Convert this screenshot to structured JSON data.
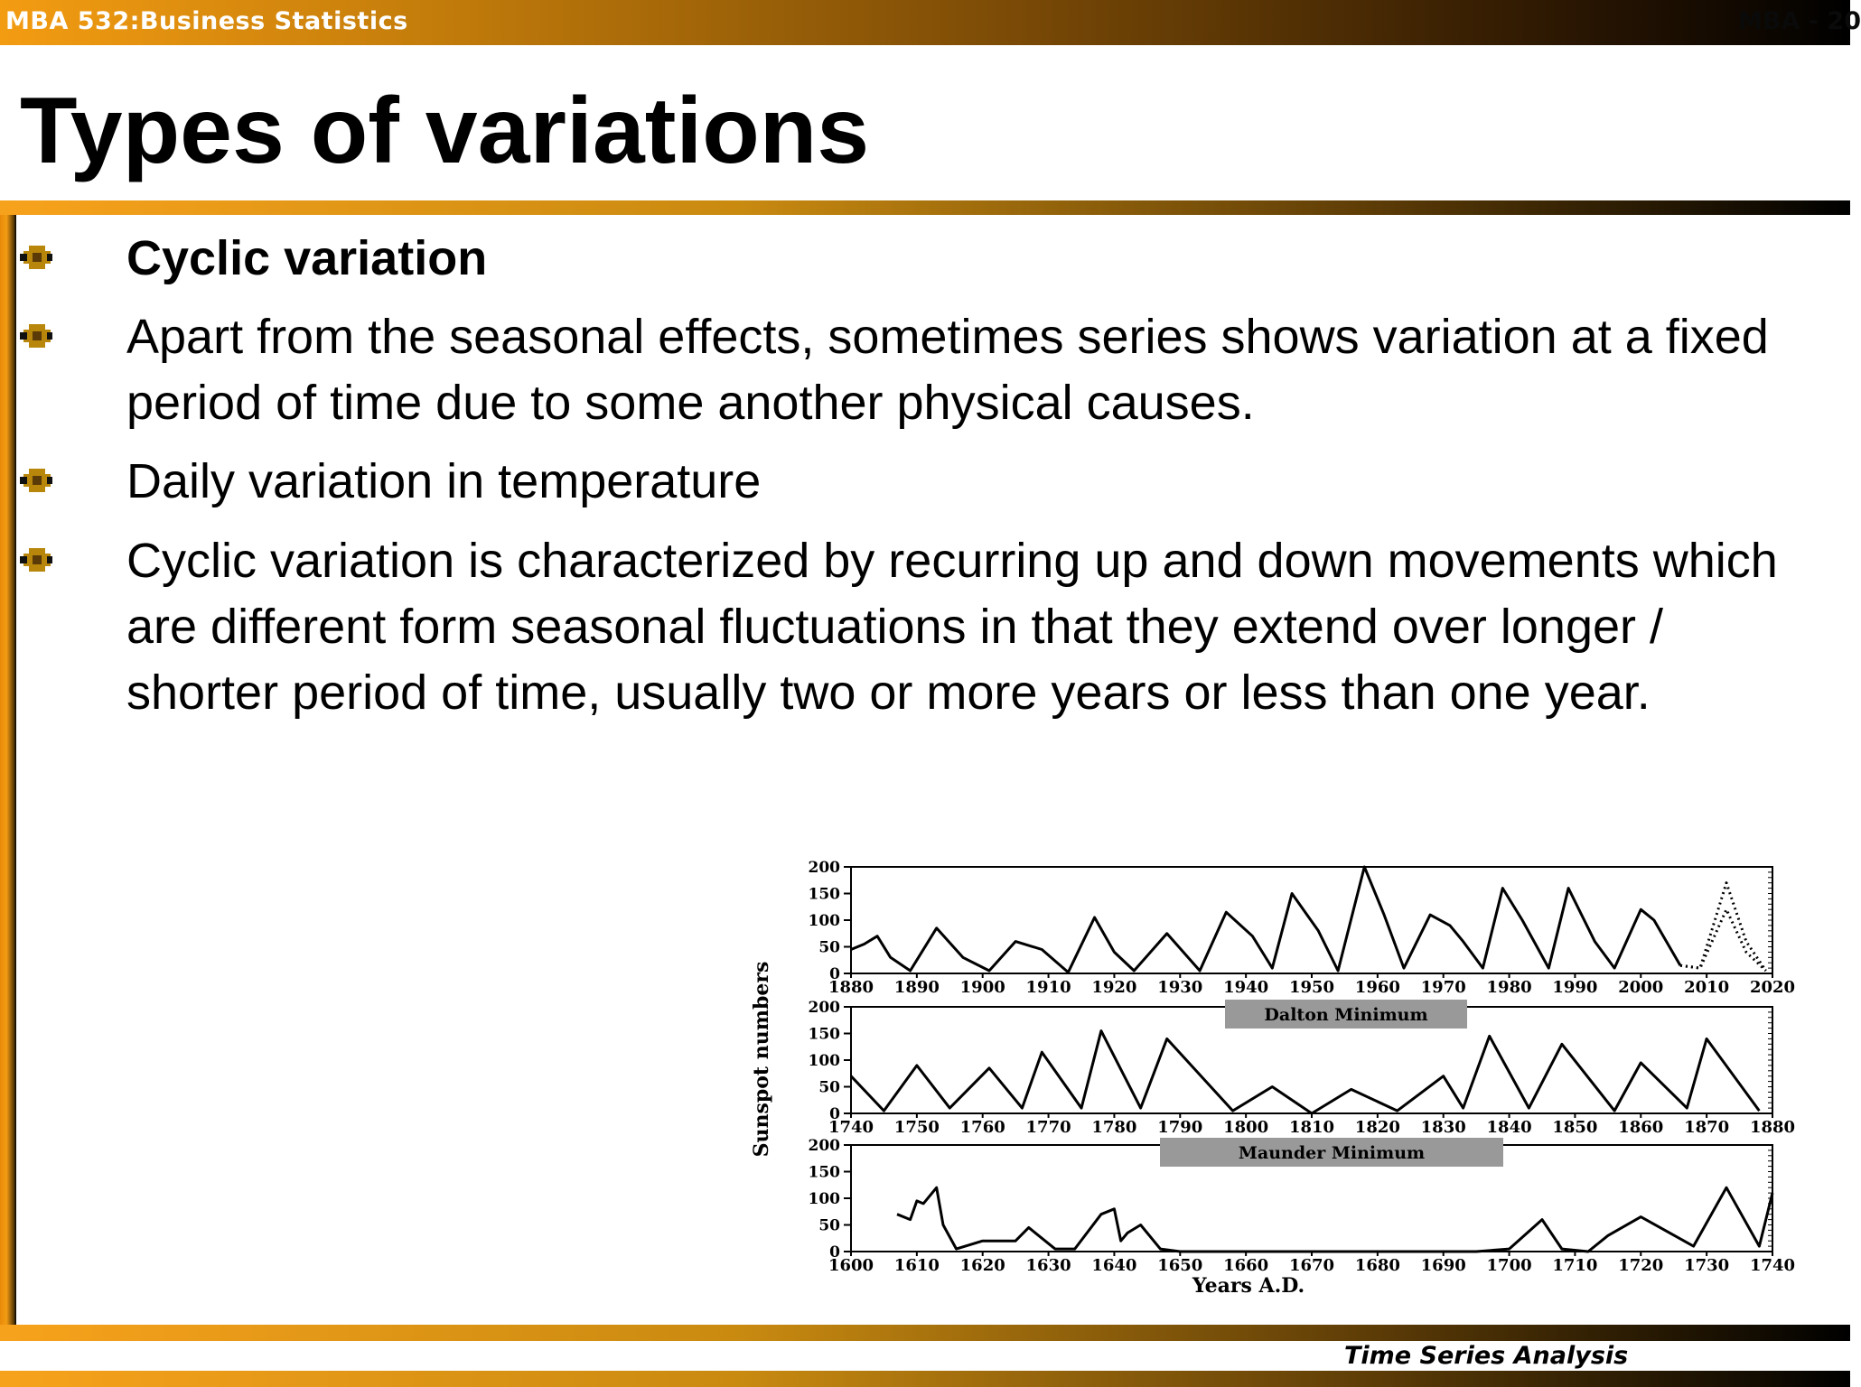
{
  "header": {
    "course": "MBA 532:Business Statistics",
    "course_right": "MBA - 20"
  },
  "title": "Types of variations",
  "bullets": [
    {
      "text": "Cyclic variation",
      "bold": true
    },
    {
      "text": "Apart from the seasonal effects, sometimes series shows variation at a fixed period of time due to some another physical causes.",
      "bold": false
    },
    {
      "text": "Daily variation in temperature",
      "bold": false
    },
    {
      "text": "Cyclic variation is characterized by recurring up and down movements which are different form seasonal fluctuations in that they extend over longer / shorter period of time, usually two or more years or less than one year.",
      "bold": false
    }
  ],
  "footer": "Time Series Analysis",
  "chart_data": [
    {
      "type": "line",
      "xlabel": "",
      "ylabel": "Sunspot numbers",
      "xlim": [
        1880,
        2020
      ],
      "ylim": [
        0,
        200
      ],
      "x_ticks": [
        "1880",
        "1890",
        "1900",
        "1910",
        "1920",
        "1930",
        "1940",
        "1950",
        "1960",
        "1970",
        "1980",
        "1990",
        "2000",
        "2010",
        "2020"
      ],
      "y_ticks": [
        "0",
        "50",
        "100",
        "150",
        "200"
      ],
      "series": [
        {
          "style": "solid",
          "x": [
            1880,
            1882,
            1884,
            1886,
            1889,
            1893,
            1897,
            1901,
            1905,
            1909,
            1913,
            1917,
            1920,
            1923,
            1928,
            1933,
            1937,
            1941,
            1944,
            1947,
            1951,
            1954,
            1958,
            1961,
            1964,
            1968,
            1971,
            1973,
            1976,
            1979,
            1982,
            1986,
            1989,
            1993,
            1996,
            2000,
            2002,
            2006
          ],
          "y": [
            45,
            55,
            70,
            30,
            5,
            85,
            30,
            5,
            60,
            45,
            2,
            105,
            40,
            5,
            75,
            5,
            115,
            70,
            10,
            150,
            80,
            5,
            200,
            110,
            10,
            110,
            90,
            60,
            10,
            160,
            100,
            10,
            160,
            60,
            10,
            120,
            100,
            15
          ]
        },
        {
          "style": "dotted",
          "x": [
            2006,
            2009,
            2013,
            2016,
            2019
          ],
          "y": [
            15,
            10,
            170,
            60,
            5
          ]
        },
        {
          "style": "dotted",
          "x": [
            2006,
            2009,
            2013,
            2016,
            2019
          ],
          "y": [
            15,
            10,
            120,
            40,
            5
          ]
        }
      ]
    },
    {
      "type": "line",
      "annotation": "Dalton Minimum",
      "xlim": [
        1740,
        1880
      ],
      "ylim": [
        0,
        200
      ],
      "x_ticks": [
        "1740",
        "1750",
        "1760",
        "1770",
        "1780",
        "1790",
        "1800",
        "1810",
        "1820",
        "1830",
        "1840",
        "1850",
        "1860",
        "1870",
        "1880"
      ],
      "y_ticks": [
        "0",
        "50",
        "100",
        "150",
        "200"
      ],
      "series": [
        {
          "style": "solid",
          "x": [
            1740,
            1745,
            1750,
            1755,
            1761,
            1766,
            1769,
            1775,
            1778,
            1784,
            1788,
            1798,
            1804,
            1810,
            1816,
            1823,
            1830,
            1833,
            1837,
            1843,
            1848,
            1856,
            1860,
            1867,
            1870,
            1878
          ],
          "y": [
            70,
            5,
            90,
            10,
            85,
            10,
            115,
            10,
            155,
            10,
            140,
            5,
            50,
            0,
            45,
            5,
            70,
            10,
            145,
            10,
            130,
            5,
            95,
            10,
            140,
            5
          ]
        }
      ]
    },
    {
      "type": "line",
      "annotation": "Maunder Minimum",
      "xlabel": "Years A.D.",
      "xlim": [
        1600,
        1740
      ],
      "ylim": [
        0,
        200
      ],
      "x_ticks": [
        "1600",
        "1610",
        "1620",
        "1630",
        "1640",
        "1650",
        "1660",
        "1670",
        "1680",
        "1690",
        "1700",
        "1710",
        "1720",
        "1730",
        "1740"
      ],
      "y_ticks": [
        "0",
        "50",
        "100",
        "150",
        "200"
      ],
      "series": [
        {
          "style": "solid",
          "x": [
            1607,
            1609,
            1610,
            1611,
            1613,
            1614,
            1616,
            1620,
            1625,
            1627,
            1631,
            1634,
            1638,
            1640,
            1641,
            1642,
            1644,
            1647,
            1650,
            1695,
            1700,
            1705,
            1708,
            1712,
            1715,
            1720,
            1728,
            1733,
            1738,
            1740
          ],
          "y": [
            70,
            60,
            95,
            90,
            120,
            50,
            5,
            20,
            20,
            45,
            5,
            5,
            70,
            80,
            20,
            35,
            50,
            5,
            0,
            0,
            5,
            60,
            5,
            0,
            30,
            65,
            10,
            120,
            10,
            110
          ]
        }
      ]
    }
  ]
}
